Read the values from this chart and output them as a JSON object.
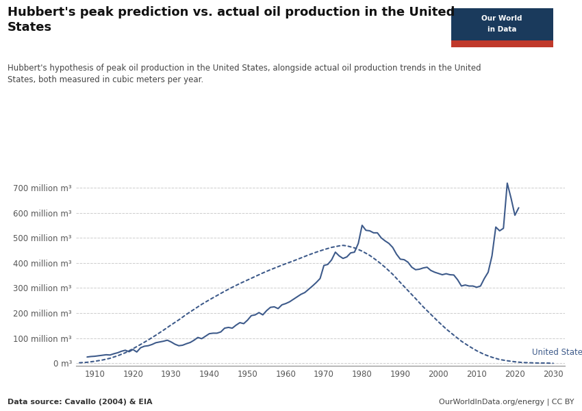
{
  "title": "Hubbert's peak prediction vs. actual oil production in the United\nStates",
  "subtitle": "Hubbert's hypothesis of peak oil production in the United States, alongside actual oil production trends in the United\nStates, both measured in cubic meters per year.",
  "data_source": "Data source: Cavallo (2004) & EIA",
  "owid_url": "OurWorldInData.org/energy | CC BY",
  "line_color": "#3d5a8a",
  "background_color": "#ffffff",
  "ylabel_ticks": [
    "0 m³",
    "100 million m³",
    "200 million m³",
    "300 million m³",
    "400 million m³",
    "500 million m³",
    "600 million m³",
    "700 million m³"
  ],
  "ytick_values": [
    0,
    100,
    200,
    300,
    400,
    500,
    600,
    700
  ],
  "xlim": [
    1905,
    2033
  ],
  "ylim": [
    -10,
    760
  ],
  "legend_label": "United States",
  "actual_data": [
    [
      1908,
      25
    ],
    [
      1909,
      27
    ],
    [
      1910,
      28
    ],
    [
      1911,
      30
    ],
    [
      1912,
      32
    ],
    [
      1913,
      34
    ],
    [
      1914,
      33
    ],
    [
      1915,
      38
    ],
    [
      1916,
      42
    ],
    [
      1917,
      48
    ],
    [
      1918,
      52
    ],
    [
      1919,
      46
    ],
    [
      1920,
      55
    ],
    [
      1921,
      45
    ],
    [
      1922,
      62
    ],
    [
      1923,
      68
    ],
    [
      1924,
      70
    ],
    [
      1925,
      75
    ],
    [
      1926,
      82
    ],
    [
      1927,
      85
    ],
    [
      1928,
      88
    ],
    [
      1929,
      92
    ],
    [
      1930,
      85
    ],
    [
      1931,
      76
    ],
    [
      1932,
      70
    ],
    [
      1933,
      72
    ],
    [
      1934,
      78
    ],
    [
      1935,
      83
    ],
    [
      1936,
      92
    ],
    [
      1937,
      103
    ],
    [
      1938,
      98
    ],
    [
      1939,
      108
    ],
    [
      1940,
      118
    ],
    [
      1941,
      120
    ],
    [
      1942,
      120
    ],
    [
      1943,
      125
    ],
    [
      1944,
      140
    ],
    [
      1945,
      143
    ],
    [
      1946,
      140
    ],
    [
      1947,
      152
    ],
    [
      1948,
      162
    ],
    [
      1949,
      158
    ],
    [
      1950,
      172
    ],
    [
      1951,
      190
    ],
    [
      1952,
      193
    ],
    [
      1953,
      202
    ],
    [
      1954,
      193
    ],
    [
      1955,
      210
    ],
    [
      1956,
      223
    ],
    [
      1957,
      225
    ],
    [
      1958,
      218
    ],
    [
      1959,
      233
    ],
    [
      1960,
      238
    ],
    [
      1961,
      245
    ],
    [
      1962,
      255
    ],
    [
      1963,
      265
    ],
    [
      1964,
      275
    ],
    [
      1965,
      282
    ],
    [
      1966,
      295
    ],
    [
      1967,
      308
    ],
    [
      1968,
      322
    ],
    [
      1969,
      338
    ],
    [
      1970,
      390
    ],
    [
      1971,
      394
    ],
    [
      1972,
      412
    ],
    [
      1973,
      443
    ],
    [
      1974,
      428
    ],
    [
      1975,
      418
    ],
    [
      1976,
      424
    ],
    [
      1977,
      440
    ],
    [
      1978,
      443
    ],
    [
      1979,
      478
    ],
    [
      1980,
      550
    ],
    [
      1981,
      530
    ],
    [
      1982,
      528
    ],
    [
      1983,
      520
    ],
    [
      1984,
      520
    ],
    [
      1985,
      500
    ],
    [
      1986,
      488
    ],
    [
      1987,
      478
    ],
    [
      1988,
      462
    ],
    [
      1989,
      435
    ],
    [
      1990,
      415
    ],
    [
      1991,
      413
    ],
    [
      1992,
      403
    ],
    [
      1993,
      383
    ],
    [
      1994,
      373
    ],
    [
      1995,
      375
    ],
    [
      1996,
      380
    ],
    [
      1997,
      383
    ],
    [
      1998,
      370
    ],
    [
      1999,
      363
    ],
    [
      2000,
      358
    ],
    [
      2001,
      353
    ],
    [
      2002,
      357
    ],
    [
      2003,
      353
    ],
    [
      2004,
      352
    ],
    [
      2005,
      333
    ],
    [
      2006,
      308
    ],
    [
      2007,
      312
    ],
    [
      2008,
      308
    ],
    [
      2009,
      308
    ],
    [
      2010,
      303
    ],
    [
      2011,
      308
    ],
    [
      2012,
      338
    ],
    [
      2013,
      363
    ],
    [
      2014,
      428
    ],
    [
      2015,
      543
    ],
    [
      2016,
      528
    ],
    [
      2017,
      538
    ],
    [
      2018,
      718
    ],
    [
      2019,
      658
    ],
    [
      2020,
      590
    ],
    [
      2021,
      620
    ]
  ],
  "hubbert_data": [
    [
      1906,
      2
    ],
    [
      1908,
      4
    ],
    [
      1910,
      8
    ],
    [
      1912,
      13
    ],
    [
      1914,
      20
    ],
    [
      1916,
      30
    ],
    [
      1918,
      42
    ],
    [
      1920,
      58
    ],
    [
      1922,
      75
    ],
    [
      1924,
      93
    ],
    [
      1926,
      112
    ],
    [
      1928,
      132
    ],
    [
      1930,
      153
    ],
    [
      1932,
      173
    ],
    [
      1934,
      195
    ],
    [
      1936,
      215
    ],
    [
      1938,
      235
    ],
    [
      1940,
      253
    ],
    [
      1942,
      270
    ],
    [
      1944,
      287
    ],
    [
      1946,
      303
    ],
    [
      1948,
      318
    ],
    [
      1950,
      332
    ],
    [
      1952,
      346
    ],
    [
      1954,
      360
    ],
    [
      1956,
      373
    ],
    [
      1958,
      385
    ],
    [
      1960,
      397
    ],
    [
      1962,
      408
    ],
    [
      1964,
      420
    ],
    [
      1966,
      432
    ],
    [
      1968,
      443
    ],
    [
      1970,
      453
    ],
    [
      1972,
      462
    ],
    [
      1974,
      468
    ],
    [
      1975,
      470
    ],
    [
      1976,
      468
    ],
    [
      1978,
      460
    ],
    [
      1980,
      447
    ],
    [
      1982,
      430
    ],
    [
      1984,
      408
    ],
    [
      1986,
      383
    ],
    [
      1988,
      355
    ],
    [
      1990,
      322
    ],
    [
      1992,
      290
    ],
    [
      1994,
      258
    ],
    [
      1996,
      225
    ],
    [
      1998,
      195
    ],
    [
      2000,
      165
    ],
    [
      2002,
      137
    ],
    [
      2004,
      112
    ],
    [
      2006,
      88
    ],
    [
      2008,
      68
    ],
    [
      2010,
      50
    ],
    [
      2012,
      35
    ],
    [
      2014,
      24
    ],
    [
      2016,
      15
    ],
    [
      2018,
      10
    ],
    [
      2020,
      6
    ],
    [
      2022,
      3
    ],
    [
      2024,
      2
    ],
    [
      2026,
      1
    ],
    [
      2028,
      1
    ],
    [
      2030,
      0
    ]
  ]
}
